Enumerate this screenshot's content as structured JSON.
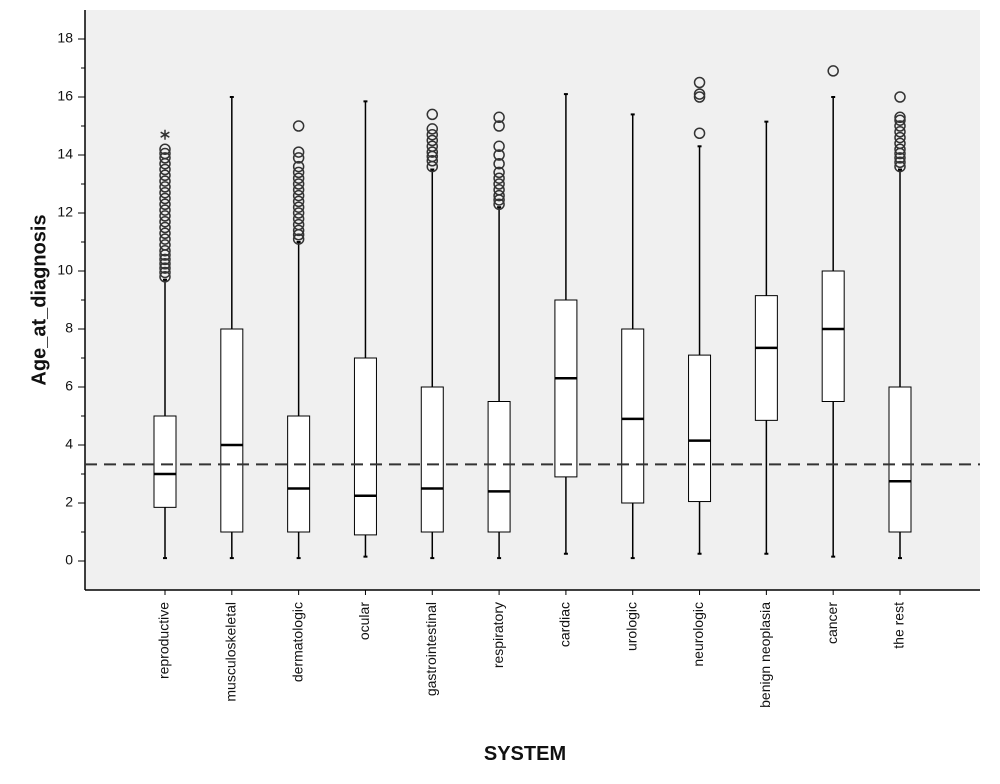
{
  "chart_data": {
    "type": "boxplot",
    "x_label": "SYSTEM",
    "y_label": "Age_at_diagnosis",
    "categories": [
      "reproductive",
      "musculoskeletal",
      "dermatologic",
      "ocular",
      "gastrointestinal",
      "respiratory",
      "cardiac",
      "urologic",
      "neurologic",
      "benign neoplasia",
      "cancer",
      "the rest"
    ],
    "boxes": [
      {
        "whisker_low": 0.1,
        "q1": 1.85,
        "median": 3.0,
        "q3": 5.0,
        "whisker_high": 9.7,
        "outliers": [
          9.8,
          9.95,
          10.1,
          10.25,
          10.4,
          10.55,
          10.7,
          10.9,
          11.1,
          11.3,
          11.5,
          11.7,
          11.9,
          12.1,
          12.3,
          12.5,
          12.7,
          12.9,
          13.1,
          13.3,
          13.5,
          13.7,
          13.9,
          14.05,
          14.2
        ],
        "extremes": [
          14.7
        ]
      },
      {
        "whisker_low": 0.1,
        "q1": 1.0,
        "median": 4.0,
        "q3": 8.0,
        "whisker_high": 16.0,
        "outliers": [],
        "extremes": []
      },
      {
        "whisker_low": 0.1,
        "q1": 1.0,
        "median": 2.5,
        "q3": 5.0,
        "whisker_high": 11.0,
        "outliers": [
          11.1,
          11.25,
          11.4,
          11.6,
          11.8,
          12.0,
          12.2,
          12.4,
          12.6,
          12.8,
          13.0,
          13.2,
          13.4,
          13.6,
          13.9,
          14.1,
          15.0
        ],
        "extremes": []
      },
      {
        "whisker_low": 0.15,
        "q1": 0.9,
        "median": 2.25,
        "q3": 7.0,
        "whisker_high": 15.85,
        "outliers": [],
        "extremes": []
      },
      {
        "whisker_low": 0.1,
        "q1": 1.0,
        "median": 2.5,
        "q3": 6.0,
        "whisker_high": 13.5,
        "outliers": [
          13.6,
          13.8,
          13.95,
          14.1,
          14.3,
          14.5,
          14.7,
          14.9,
          15.4
        ],
        "extremes": []
      },
      {
        "whisker_low": 0.1,
        "q1": 1.0,
        "median": 2.4,
        "q3": 5.5,
        "whisker_high": 12.2,
        "outliers": [
          12.3,
          12.45,
          12.6,
          12.8,
          13.0,
          13.2,
          13.4,
          13.7,
          14.0,
          14.3,
          15.0,
          15.3
        ],
        "extremes": []
      },
      {
        "whisker_low": 0.25,
        "q1": 2.9,
        "median": 6.3,
        "q3": 9.0,
        "whisker_high": 16.1,
        "outliers": [],
        "extremes": []
      },
      {
        "whisker_low": 0.1,
        "q1": 2.0,
        "median": 4.9,
        "q3": 8.0,
        "whisker_high": 15.4,
        "outliers": [],
        "extremes": []
      },
      {
        "whisker_low": 0.25,
        "q1": 2.05,
        "median": 4.15,
        "q3": 7.1,
        "whisker_high": 14.3,
        "outliers": [
          14.75,
          16.0,
          16.1,
          16.5
        ],
        "extremes": []
      },
      {
        "whisker_low": 0.25,
        "q1": 4.85,
        "median": 7.35,
        "q3": 9.15,
        "whisker_high": 15.15,
        "outliers": [],
        "extremes": []
      },
      {
        "whisker_low": 0.15,
        "q1": 5.5,
        "median": 8.0,
        "q3": 10.0,
        "whisker_high": 16.0,
        "outliers": [
          16.9
        ],
        "extremes": []
      },
      {
        "whisker_low": 0.1,
        "q1": 1.0,
        "median": 2.75,
        "q3": 6.0,
        "whisker_high": 13.5,
        "outliers": [
          13.6,
          13.75,
          13.9,
          14.05,
          14.2,
          14.4,
          14.6,
          14.8,
          15.0,
          15.2,
          15.3,
          16.0
        ],
        "extremes": []
      }
    ],
    "reference_line": 3.33,
    "ylim": [
      -1,
      19
    ],
    "yticks": [
      0,
      2,
      4,
      6,
      8,
      10,
      12,
      14,
      16,
      18
    ],
    "minor_yticks": [
      1,
      3,
      5,
      7,
      9,
      11,
      13,
      15,
      17
    ],
    "box_color": "#ffffff",
    "plot_background": "#f0f0f0"
  }
}
